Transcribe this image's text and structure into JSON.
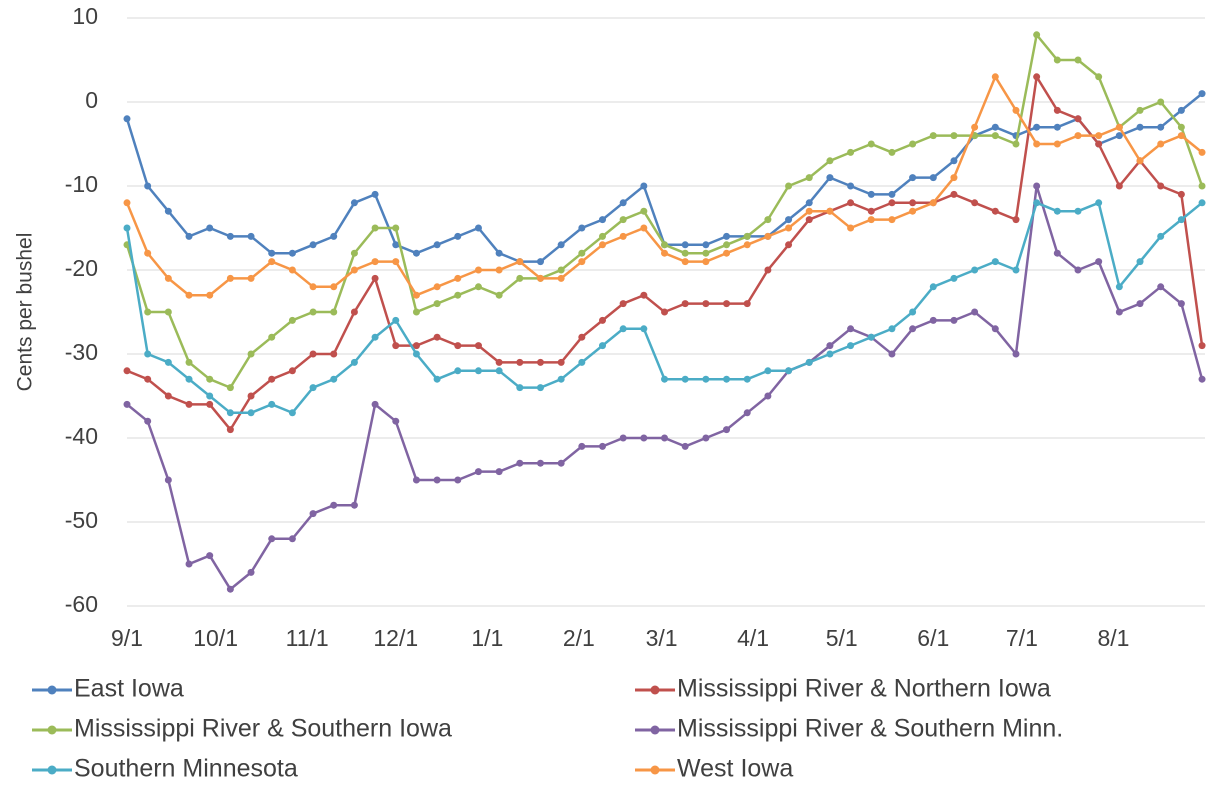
{
  "chart_data": {
    "type": "line",
    "y_label": "Cents per bushel",
    "x": [
      0,
      7,
      14,
      21,
      28,
      35,
      42,
      49,
      56,
      63,
      70,
      77,
      84,
      91,
      98,
      105,
      112,
      119,
      126,
      133,
      140,
      147,
      154,
      161,
      168,
      175,
      182,
      189,
      196,
      203,
      210,
      217,
      224,
      231,
      238,
      245,
      252,
      259,
      266,
      273,
      280,
      287,
      294,
      301,
      308,
      315,
      322,
      329,
      336,
      343,
      350,
      357,
      364
    ],
    "xlim": [
      0,
      365
    ],
    "xticks": [
      {
        "value": 0,
        "label": "9/1"
      },
      {
        "value": 30,
        "label": "10/1"
      },
      {
        "value": 61,
        "label": "11/1"
      },
      {
        "value": 91,
        "label": "12/1"
      },
      {
        "value": 122,
        "label": "1/1"
      },
      {
        "value": 153,
        "label": "2/1"
      },
      {
        "value": 181,
        "label": "3/1"
      },
      {
        "value": 212,
        "label": "4/1"
      },
      {
        "value": 242,
        "label": "5/1"
      },
      {
        "value": 273,
        "label": "6/1"
      },
      {
        "value": 303,
        "label": "7/1"
      },
      {
        "value": 334,
        "label": "8/1"
      }
    ],
    "ylim": [
      -60,
      10
    ],
    "yticks": [
      10,
      0,
      -10,
      -20,
      -30,
      -40,
      -50,
      -60
    ],
    "grid": true,
    "legend": "bottom",
    "series": [
      {
        "name": "East Iowa",
        "color": "#4f81bd",
        "values": [
          -2,
          -10,
          -13,
          -16,
          -15,
          -16,
          -16,
          -18,
          -18,
          -17,
          -16,
          -12,
          -11,
          -17,
          -18,
          -17,
          -16,
          -15,
          -18,
          -19,
          -19,
          -17,
          -15,
          -14,
          -12,
          -10,
          -17,
          -17,
          -17,
          -16,
          -16,
          -16,
          -14,
          -12,
          -9,
          -10,
          -11,
          -11,
          -9,
          -9,
          -7,
          -4,
          -3,
          -4,
          -3,
          -3,
          -2,
          -5,
          -4,
          -3,
          -3,
          -1,
          1
        ]
      },
      {
        "name": "Mississippi River & Northern Iowa",
        "color": "#c0504d",
        "values": [
          -32,
          -33,
          -35,
          -36,
          -36,
          -39,
          -35,
          -33,
          -32,
          -30,
          -30,
          -25,
          -21,
          -29,
          -29,
          -28,
          -29,
          -29,
          -31,
          -31,
          -31,
          -31,
          -28,
          -26,
          -24,
          -23,
          -25,
          -24,
          -24,
          -24,
          -24,
          -20,
          -17,
          -14,
          -13,
          -12,
          -13,
          -12,
          -12,
          -12,
          -11,
          -12,
          -13,
          -14,
          3,
          -1,
          -2,
          -5,
          -10,
          -7,
          -10,
          -11,
          -29
        ]
      },
      {
        "name": "Mississippi River & Southern Iowa",
        "color": "#9bbb59",
        "values": [
          -17,
          -25,
          -25,
          -31,
          -33,
          -34,
          -30,
          -28,
          -26,
          -25,
          -25,
          -18,
          -15,
          -15,
          -25,
          -24,
          -23,
          -22,
          -23,
          -21,
          -21,
          -20,
          -18,
          -16,
          -14,
          -13,
          -17,
          -18,
          -18,
          -17,
          -16,
          -14,
          -10,
          -9,
          -7,
          -6,
          -5,
          -6,
          -5,
          -4,
          -4,
          -4,
          -4,
          -5,
          8,
          5,
          5,
          3,
          -3,
          -1,
          0,
          -3,
          -10
        ]
      },
      {
        "name": "Mississippi River & Southern Minn.",
        "color": "#8064a2",
        "values": [
          -36,
          -38,
          -45,
          -55,
          -54,
          -58,
          -56,
          -52,
          -52,
          -49,
          -48,
          -48,
          -36,
          -38,
          -45,
          -45,
          -45,
          -44,
          -44,
          -43,
          -43,
          -43,
          -41,
          -41,
          -40,
          -40,
          -40,
          -41,
          -40,
          -39,
          -37,
          -35,
          -32,
          -31,
          -29,
          -27,
          -28,
          -30,
          -27,
          -26,
          -26,
          -25,
          -27,
          -30,
          -10,
          -18,
          -20,
          -19,
          -25,
          -24,
          -22,
          -24,
          -33
        ]
      },
      {
        "name": "Southern Minnesota",
        "color": "#4bacc6",
        "values": [
          -15,
          -30,
          -31,
          -33,
          -35,
          -37,
          -37,
          -36,
          -37,
          -34,
          -33,
          -31,
          -28,
          -26,
          -30,
          -33,
          -32,
          -32,
          -32,
          -34,
          -34,
          -33,
          -31,
          -29,
          -27,
          -27,
          -33,
          -33,
          -33,
          -33,
          -33,
          -32,
          -32,
          -31,
          -30,
          -29,
          -28,
          -27,
          -25,
          -22,
          -21,
          -20,
          -19,
          -20,
          -12,
          -13,
          -13,
          -12,
          -22,
          -19,
          -16,
          -14,
          -12
        ]
      },
      {
        "name": "West Iowa",
        "color": "#f79646",
        "values": [
          -12,
          -18,
          -21,
          -23,
          -23,
          -21,
          -21,
          -19,
          -20,
          -22,
          -22,
          -20,
          -19,
          -19,
          -23,
          -22,
          -21,
          -20,
          -20,
          -19,
          -21,
          -21,
          -19,
          -17,
          -16,
          -15,
          -18,
          -19,
          -19,
          -18,
          -17,
          -16,
          -15,
          -13,
          -13,
          -15,
          -14,
          -14,
          -13,
          -12,
          -9,
          -3,
          3,
          -1,
          -5,
          -5,
          -4,
          -4,
          -3,
          -7,
          -5,
          -4,
          -6
        ]
      }
    ]
  }
}
